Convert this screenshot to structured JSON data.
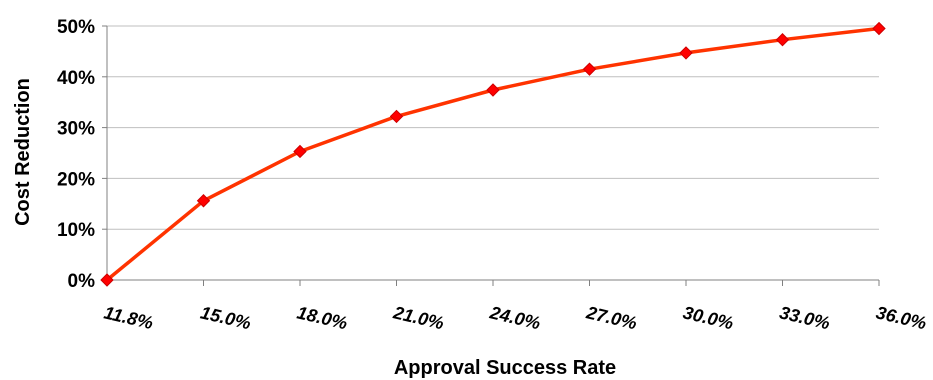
{
  "chart_data": {
    "type": "line",
    "title": "",
    "xlabel": "Approval Success Rate",
    "ylabel": "Cost Reduction",
    "categories": [
      "11.8%",
      "15.0%",
      "18.0%",
      "21.0%",
      "24.0%",
      "27.0%",
      "30.0%",
      "33.0%",
      "36.0%"
    ],
    "series": [
      {
        "values": [
          0,
          15.6,
          25.3,
          32.2,
          37.4,
          41.5,
          44.7,
          47.3,
          49.5
        ]
      }
    ],
    "y_tick_labels": [
      "0%",
      "10%",
      "20%",
      "30%",
      "40%",
      "50%"
    ],
    "ylim": [
      0,
      50
    ],
    "grid": true,
    "legend": "none",
    "colors": {
      "line": "#ff3300",
      "marker": "#ff0000",
      "grid": "#bfbfbf",
      "axis": "#808080"
    }
  }
}
